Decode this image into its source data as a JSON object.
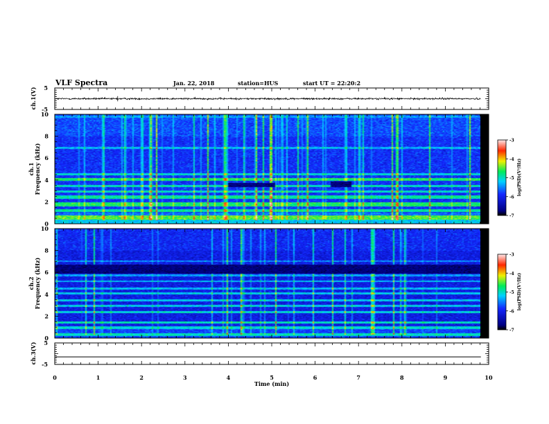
{
  "header": {
    "title": "VLF Spectra",
    "date": "Jan. 22, 2018",
    "station": "station=HUS",
    "start": "start UT = 22:20:2"
  },
  "chart_data": [
    {
      "type": "line",
      "panel": "ch1-waveform",
      "ylabel": "ch.1(V)",
      "ylim": [
        -5,
        5
      ],
      "yticks": [
        "5",
        "-5"
      ],
      "xlim": [
        0,
        10
      ],
      "x_extent": [
        0,
        9.82
      ],
      "amplitude": 0.4,
      "spikes": [
        {
          "x": 1.45,
          "y": 1.2
        }
      ]
    },
    {
      "type": "heatmap",
      "panel": "ch1-spectrogram",
      "ylabel_top": "ch.1",
      "ylabel": "Frequency (kHz)",
      "ylim": [
        0,
        10
      ],
      "yticks": [
        "0",
        "2",
        "4",
        "6",
        "8",
        "10"
      ],
      "xlim": [
        0,
        10
      ],
      "x_extent": [
        0,
        9.82
      ],
      "bands": [
        {
          "f0": 0.0,
          "f1": 0.4,
          "level": -5.2
        },
        {
          "f0": 0.4,
          "f1": 0.75,
          "level": -4.5
        },
        {
          "f0": 1.1,
          "f1": 1.35,
          "level": -4.9
        },
        {
          "f0": 1.6,
          "f1": 1.95,
          "level": -4.7
        },
        {
          "f0": 2.25,
          "f1": 2.6,
          "level": -4.9
        },
        {
          "f0": 2.85,
          "f1": 3.05,
          "level": -5.0
        },
        {
          "f0": 3.35,
          "f1": 3.55,
          "level": -5.0
        },
        {
          "f0": 3.9,
          "f1": 4.2,
          "level": -4.7
        },
        {
          "f0": 4.45,
          "f1": 4.6,
          "level": -5.1
        },
        {
          "f0": 6.85,
          "f1": 7.05,
          "level": -5.3
        },
        {
          "f0": 9.7,
          "f1": 9.9,
          "level": -5.4
        }
      ],
      "dark_patches": [
        {
          "t0": 4.0,
          "t1": 5.1,
          "f0": 3.35,
          "f1": 3.75
        },
        {
          "t0": 6.35,
          "t1": 6.85,
          "f0": 3.35,
          "f1": 3.85
        }
      ],
      "background_level": -5.9
    },
    {
      "type": "heatmap",
      "panel": "ch2-spectrogram",
      "ylabel_top": "ch.2",
      "ylabel": "Frequency (kHz)",
      "ylim": [
        0,
        10
      ],
      "yticks": [
        "0",
        "2",
        "4",
        "6",
        "8",
        "10"
      ],
      "xlim": [
        0,
        10
      ],
      "x_extent": [
        0,
        9.82
      ],
      "bands": [
        {
          "f0": 0.2,
          "f1": 0.45,
          "level": -5.0
        },
        {
          "f0": 0.85,
          "f1": 1.05,
          "level": -5.1
        },
        {
          "f0": 1.35,
          "f1": 1.55,
          "level": -5.0
        },
        {
          "f0": 2.3,
          "f1": 2.5,
          "level": -5.1
        },
        {
          "f0": 2.85,
          "f1": 3.05,
          "level": -5.2
        },
        {
          "f0": 3.35,
          "f1": 3.55,
          "level": -5.2
        },
        {
          "f0": 4.0,
          "f1": 4.15,
          "level": -5.2
        },
        {
          "f0": 4.45,
          "f1": 4.6,
          "level": -5.3
        },
        {
          "f0": 5.1,
          "f1": 5.25,
          "level": -5.3
        },
        {
          "f0": 5.65,
          "f1": 5.8,
          "level": -5.4
        },
        {
          "f0": 6.95,
          "f1": 7.1,
          "level": -5.5
        }
      ],
      "dark_patches": [
        {
          "t0": 0.0,
          "t1": 9.82,
          "f0": 5.9,
          "f1": 6.7
        }
      ],
      "background_level": -6.1
    },
    {
      "type": "line",
      "panel": "ch3-waveform",
      "ylabel": "ch.3(V)",
      "ylim": [
        -5,
        5
      ],
      "yticks": [
        "5",
        "-5"
      ],
      "xlim": [
        0,
        10
      ],
      "x_extent": [
        0,
        9.82
      ],
      "constant": -1.5,
      "xlabel": "Time (min)",
      "xticks": [
        "0",
        "1",
        "2",
        "3",
        "4",
        "5",
        "6",
        "7",
        "8",
        "9",
        "10"
      ]
    }
  ],
  "colorbars": [
    {
      "name": "colorbar-ch1",
      "label": "log(PSD)(V²/Hz)",
      "range": [
        -7,
        -3
      ],
      "ticks": [
        "-3",
        "-4",
        "-5",
        "-6",
        "-7"
      ]
    },
    {
      "name": "colorbar-ch2",
      "label": "log(PSD)(V²/Hz)",
      "range": [
        -7,
        -3
      ],
      "ticks": [
        "-3",
        "-4",
        "-5",
        "-6",
        "-7"
      ]
    }
  ]
}
